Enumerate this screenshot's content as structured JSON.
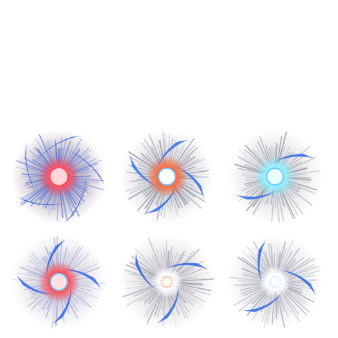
{
  "sprites": [
    {
      "core": "#ff4d5e",
      "core_glow": "#ffd6dc",
      "swirl": "#2f5fe0",
      "ray": "#3a5fd8",
      "haze": "#9a8aa0",
      "arms": 5,
      "style": "burst"
    },
    {
      "core": "#ff6a3a",
      "core_glow": "#ffffff",
      "swirl": "#2c6ef0",
      "ray": "#7a7a90",
      "haze": "#c8c8d0",
      "arms": 4,
      "style": "vortex"
    },
    {
      "core": "#8ff3ff",
      "core_glow": "#e9ffff",
      "swirl": "#2a66e8",
      "ray": "#808494",
      "haze": "#cfcfd6",
      "arms": 2,
      "style": "orb"
    },
    {
      "core": "#ff4c55",
      "core_glow": "#ffe0e4",
      "swirl": "#2f64e8",
      "ray": "#8b95c8",
      "haze": "#c9c5d6",
      "arms": 4,
      "style": "vortex"
    },
    {
      "core": "#ffffff",
      "core_glow": "#f3a37a",
      "swirl": "#2a60e0",
      "ray": "#8a8d9c",
      "haze": "#cfcad2",
      "arms": 3,
      "style": "spark"
    },
    {
      "core": "#ffffff",
      "core_glow": "#cdefff",
      "swirl": "#2a62e4",
      "ray": "#8a8d9c",
      "haze": "#d4d4dc",
      "arms": 3,
      "style": "spark"
    }
  ]
}
